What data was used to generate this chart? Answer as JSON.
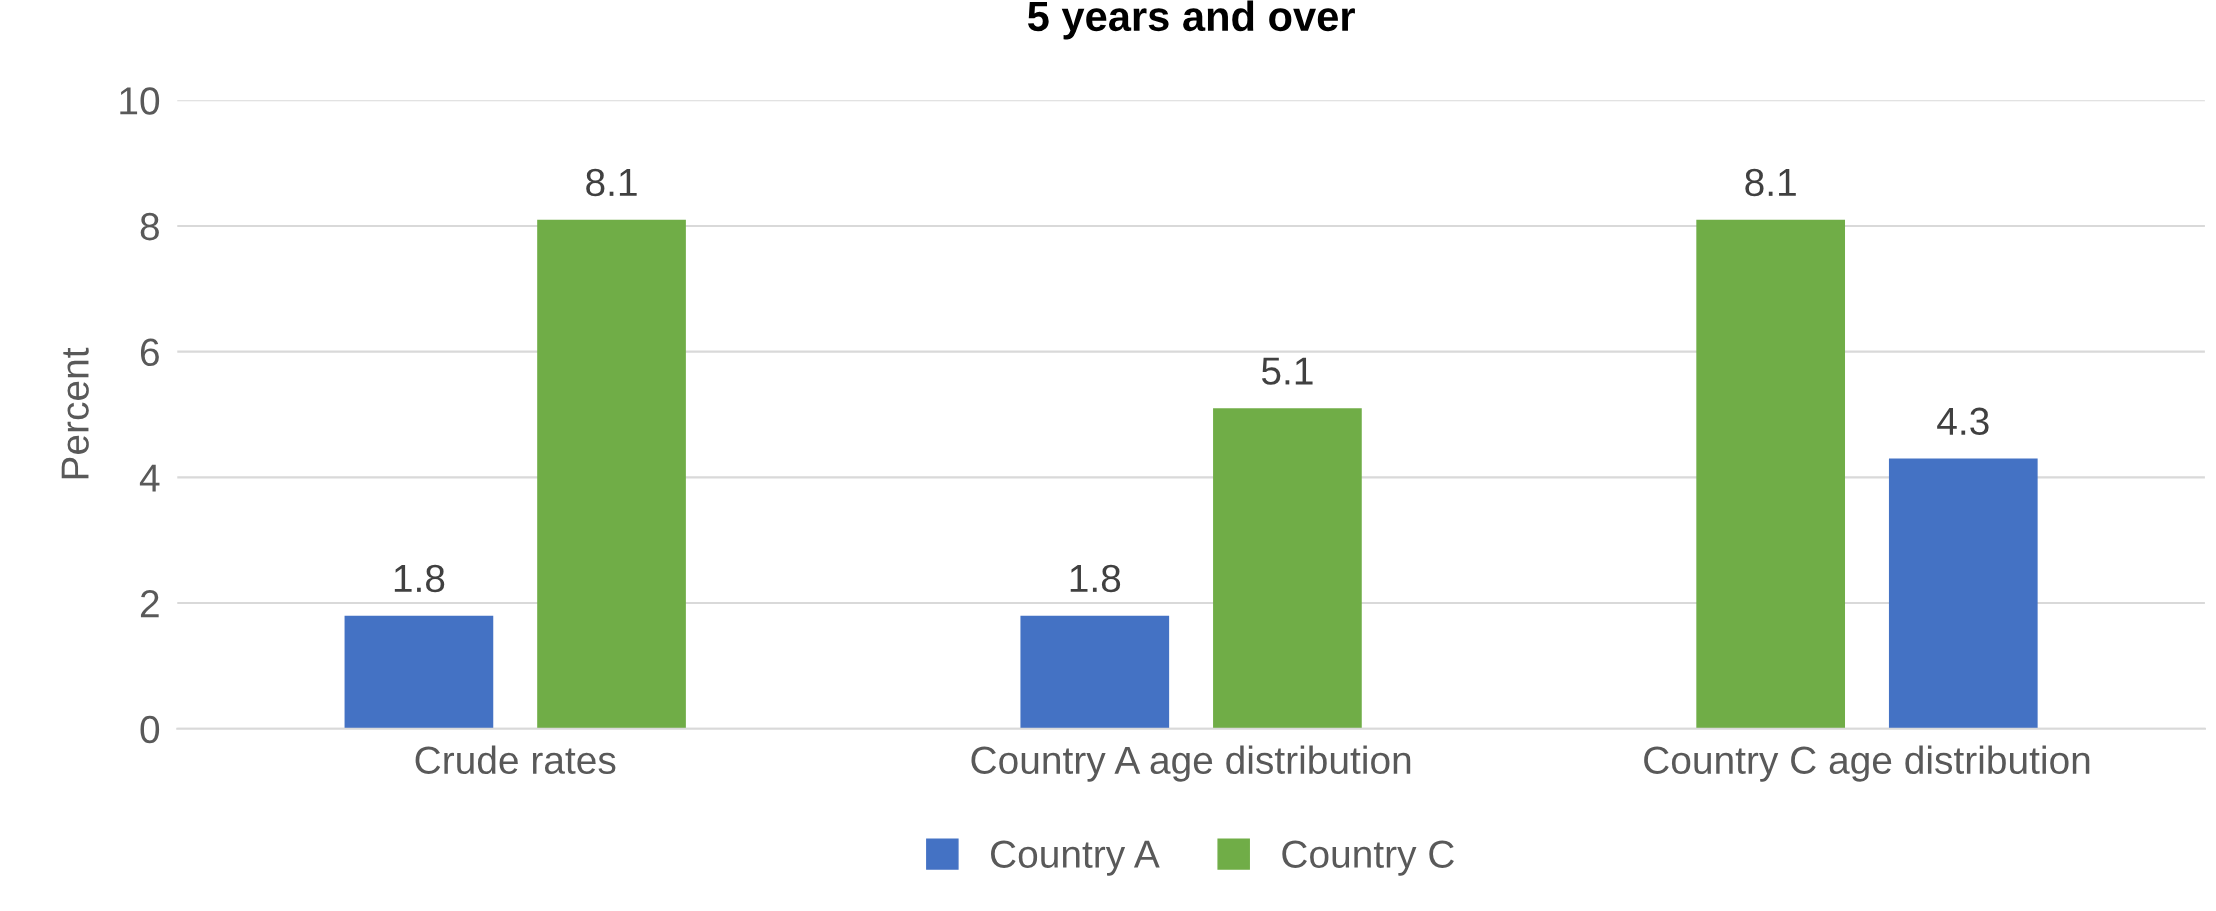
{
  "chart_data": {
    "type": "bar",
    "title": "5 years and over",
    "ylabel": "Percent",
    "categories": [
      "Crude rates",
      "Country A age distribution",
      "Country C age distribution"
    ],
    "series": [
      {
        "name": "Country A",
        "color": "#4472c4",
        "colors": [
          "#4472c4",
          "#4472c4",
          "#70ad47"
        ],
        "values": [
          1.8,
          1.8,
          8.1
        ]
      },
      {
        "name": "Country C",
        "color": "#70ad47",
        "colors": [
          "#70ad47",
          "#70ad47",
          "#4472c4"
        ],
        "values": [
          8.1,
          5.1,
          4.3
        ]
      }
    ],
    "ylim": [
      0,
      10
    ],
    "yticks": [
      0,
      2,
      4,
      6,
      8,
      10
    ],
    "grid": "y",
    "legend": "bottom",
    "data_labels": true
  }
}
